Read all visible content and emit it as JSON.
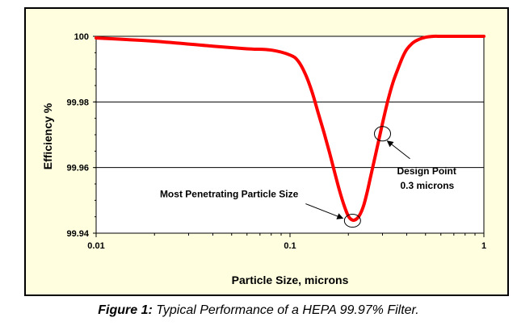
{
  "chart_data": {
    "type": "line",
    "title": "",
    "xlabel": "Particle Size, microns",
    "ylabel": "Efficiency %",
    "xscale": "log",
    "xlim": [
      0.01,
      1
    ],
    "ylim": [
      99.94,
      100
    ],
    "xticks": [
      0.01,
      0.1,
      1
    ],
    "xtick_labels": [
      "0.01",
      "0.1",
      "1"
    ],
    "yticks": [
      99.94,
      99.96,
      99.98,
      100
    ],
    "ytick_labels": [
      "99.94",
      "99.96",
      "99.98",
      "100"
    ],
    "grid": "horizontal",
    "series": [
      {
        "name": "Efficiency",
        "color": "#ff0000",
        "x": [
          0.01,
          0.02,
          0.04,
          0.06,
          0.08,
          0.1,
          0.11,
          0.12,
          0.13,
          0.14,
          0.15,
          0.16,
          0.17,
          0.18,
          0.19,
          0.2,
          0.21,
          0.22,
          0.23,
          0.24,
          0.25,
          0.26,
          0.28,
          0.3,
          0.32,
          0.34,
          0.36,
          0.38,
          0.4,
          0.43,
          0.46,
          0.5,
          0.55,
          0.6,
          0.7,
          0.8,
          1.0
        ],
        "y": [
          99.9995,
          99.9985,
          99.997,
          99.9962,
          99.9958,
          99.9943,
          99.9925,
          99.9885,
          99.983,
          99.9765,
          99.9705,
          99.9645,
          99.9585,
          99.953,
          99.9485,
          99.9452,
          99.944,
          99.9443,
          99.9458,
          99.9485,
          99.9525,
          99.957,
          99.9655,
          99.9735,
          99.9805,
          99.986,
          99.99,
          99.9935,
          99.996,
          99.998,
          99.999,
          99.9997,
          100,
          100,
          100,
          100,
          100
        ]
      }
    ],
    "annotations": [
      {
        "text": "Most Penetrating Particle Size",
        "x": 0.21,
        "y": 99.9438,
        "label_anchor": "upper-left"
      },
      {
        "text": "Design Point",
        "text2": "0.3 microns",
        "x": 0.3,
        "y": 99.9703,
        "label_anchor": "lower-right"
      }
    ],
    "colors": {
      "background": "#ffffe0",
      "frame": "#000000",
      "curve": "#ff0000"
    }
  },
  "caption": {
    "label": "Figure 1:",
    "text": " Typical Performance of a HEPA 99.97% Filter."
  }
}
